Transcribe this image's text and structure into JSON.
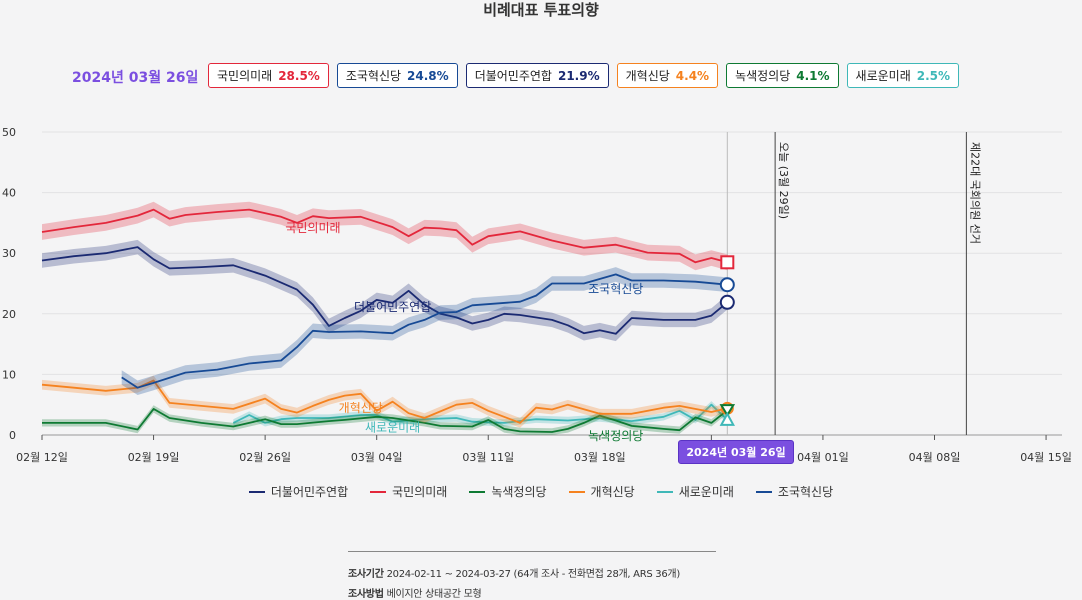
{
  "title": "비례대표 투표의향",
  "selected_date": "2024년 03월 26일",
  "badges": [
    {
      "name": "국민의미래",
      "pct": "28.5%",
      "color": "#e3273b"
    },
    {
      "name": "조국혁신당",
      "pct": "24.8%",
      "color": "#174a95"
    },
    {
      "name": "더불어민주연합",
      "pct": "21.9%",
      "color": "#1b2a72"
    },
    {
      "name": "개혁신당",
      "pct": "4.4%",
      "color": "#f5821f"
    },
    {
      "name": "녹색정의당",
      "pct": "4.1%",
      "color": "#0e7a33"
    },
    {
      "name": "새로운미래",
      "pct": "2.5%",
      "color": "#3fb8b8"
    }
  ],
  "annotations": {
    "today": "오늘 (3월 29일)",
    "election": "제22대 국회의원 선거"
  },
  "legend": [
    "더불어민주연합",
    "국민의미래",
    "녹색정의당",
    "개혁신당",
    "새로운미래",
    "조국혁신당"
  ],
  "footer": {
    "period_label": "조사기간",
    "period_value": "2024-02-11 ~ 2024-03-27 (64개 조사 - 전화면접 28개, ARS 36개)",
    "method_label": "조사방법",
    "method_value": "베이지안 상태공간 모형"
  },
  "chart_data": {
    "type": "line",
    "title": "비례대표 투표의향",
    "ylim": [
      0,
      50
    ],
    "y_ticks": [
      0,
      10,
      20,
      30,
      40,
      50
    ],
    "x_range": [
      "2024-02-12",
      "2024-04-16"
    ],
    "x_ticks": [
      "02월 12일",
      "02월 19일",
      "02월 26일",
      "03월 04일",
      "03월 11일",
      "03월 18일",
      "03월 25일",
      "04월 01일",
      "04월 08일",
      "04월 15일"
    ],
    "x_tick_dates": [
      "2024-02-12",
      "2024-02-19",
      "2024-02-26",
      "2024-03-04",
      "2024-03-11",
      "2024-03-18",
      "2024-03-25",
      "2024-04-01",
      "2024-04-08",
      "2024-04-15"
    ],
    "today_date": "2024-03-29",
    "election_date": "2024-04-10",
    "selected_date": "2024-03-26",
    "series": [
      {
        "name": "국민의미래",
        "color": "#e3273b",
        "band": 1.3,
        "label_at": [
          "2024-02-29",
          33.5
        ],
        "points": [
          [
            "2024-02-12",
            33.5
          ],
          [
            "2024-02-14",
            34.3
          ],
          [
            "2024-02-16",
            35.0
          ],
          [
            "2024-02-18",
            36.2
          ],
          [
            "2024-02-19",
            37.2
          ],
          [
            "2024-02-20",
            35.7
          ],
          [
            "2024-02-21",
            36.3
          ],
          [
            "2024-02-23",
            36.8
          ],
          [
            "2024-02-25",
            37.2
          ],
          [
            "2024-02-27",
            36.0
          ],
          [
            "2024-02-28",
            35.0
          ],
          [
            "2024-02-29",
            36.1
          ],
          [
            "2024-03-01",
            35.8
          ],
          [
            "2024-03-03",
            36.0
          ],
          [
            "2024-03-05",
            34.3
          ],
          [
            "2024-03-06",
            32.8
          ],
          [
            "2024-03-07",
            34.2
          ],
          [
            "2024-03-08",
            34.1
          ],
          [
            "2024-03-09",
            33.8
          ],
          [
            "2024-03-10",
            31.4
          ],
          [
            "2024-03-11",
            32.8
          ],
          [
            "2024-03-13",
            33.6
          ],
          [
            "2024-03-15",
            32.1
          ],
          [
            "2024-03-17",
            30.9
          ],
          [
            "2024-03-19",
            31.4
          ],
          [
            "2024-03-21",
            30.1
          ],
          [
            "2024-03-23",
            29.9
          ],
          [
            "2024-03-24",
            28.5
          ],
          [
            "2024-03-25",
            29.2
          ],
          [
            "2024-03-26",
            28.5
          ]
        ]
      },
      {
        "name": "조국혁신당",
        "color": "#174a95",
        "band": 1.2,
        "label_at": [
          "2024-03-19",
          23.4
        ],
        "points": [
          [
            "2024-02-17",
            9.5
          ],
          [
            "2024-02-18",
            7.8
          ],
          [
            "2024-02-19",
            8.6
          ],
          [
            "2024-02-21",
            10.3
          ],
          [
            "2024-02-23",
            10.8
          ],
          [
            "2024-02-25",
            11.8
          ],
          [
            "2024-02-27",
            12.3
          ],
          [
            "2024-02-28",
            14.5
          ],
          [
            "2024-02-29",
            17.2
          ],
          [
            "2024-03-01",
            17.0
          ],
          [
            "2024-03-03",
            17.1
          ],
          [
            "2024-03-05",
            16.8
          ],
          [
            "2024-03-06",
            18.2
          ],
          [
            "2024-03-07",
            19.0
          ],
          [
            "2024-03-08",
            20.2
          ],
          [
            "2024-03-09",
            20.3
          ],
          [
            "2024-03-10",
            21.4
          ],
          [
            "2024-03-13",
            22.0
          ],
          [
            "2024-03-14",
            23.0
          ],
          [
            "2024-03-15",
            25.0
          ],
          [
            "2024-03-17",
            25.0
          ],
          [
            "2024-03-19",
            26.5
          ],
          [
            "2024-03-20",
            25.5
          ],
          [
            "2024-03-22",
            25.5
          ],
          [
            "2024-03-24",
            25.3
          ],
          [
            "2024-03-26",
            24.8
          ]
        ]
      },
      {
        "name": "더불어민주연합",
        "color": "#1b2a72",
        "band": 1.2,
        "label_at": [
          "2024-03-05",
          20.5
        ],
        "points": [
          [
            "2024-02-12",
            28.8
          ],
          [
            "2024-02-14",
            29.5
          ],
          [
            "2024-02-16",
            30.0
          ],
          [
            "2024-02-18",
            31.0
          ],
          [
            "2024-02-19",
            29.0
          ],
          [
            "2024-02-20",
            27.5
          ],
          [
            "2024-02-22",
            27.7
          ],
          [
            "2024-02-24",
            28.0
          ],
          [
            "2024-02-26",
            26.3
          ],
          [
            "2024-02-28",
            24.0
          ],
          [
            "2024-02-29",
            21.5
          ],
          [
            "2024-03-01",
            18.0
          ],
          [
            "2024-03-02",
            19.3
          ],
          [
            "2024-03-03",
            20.5
          ],
          [
            "2024-03-04",
            22.3
          ],
          [
            "2024-03-05",
            21.8
          ],
          [
            "2024-03-06",
            23.8
          ],
          [
            "2024-03-07",
            21.5
          ],
          [
            "2024-03-08",
            20.0
          ],
          [
            "2024-03-09",
            19.4
          ],
          [
            "2024-03-10",
            18.4
          ],
          [
            "2024-03-11",
            19.0
          ],
          [
            "2024-03-12",
            20.0
          ],
          [
            "2024-03-13",
            19.8
          ],
          [
            "2024-03-15",
            19.0
          ],
          [
            "2024-03-16",
            18.1
          ],
          [
            "2024-03-17",
            16.8
          ],
          [
            "2024-03-18",
            17.3
          ],
          [
            "2024-03-19",
            16.7
          ],
          [
            "2024-03-20",
            19.3
          ],
          [
            "2024-03-22",
            19.0
          ],
          [
            "2024-03-24",
            19.0
          ],
          [
            "2024-03-25",
            19.7
          ],
          [
            "2024-03-26",
            21.9
          ]
        ]
      },
      {
        "name": "개혁신당",
        "color": "#f5821f",
        "band": 0.8,
        "label_at": [
          "2024-03-03",
          3.8
        ],
        "points": [
          [
            "2024-02-12",
            8.3
          ],
          [
            "2024-02-14",
            7.8
          ],
          [
            "2024-02-16",
            7.3
          ],
          [
            "2024-02-18",
            7.8
          ],
          [
            "2024-02-19",
            9.0
          ],
          [
            "2024-02-20",
            5.3
          ],
          [
            "2024-02-22",
            4.8
          ],
          [
            "2024-02-24",
            4.3
          ],
          [
            "2024-02-26",
            6.0
          ],
          [
            "2024-02-27",
            4.3
          ],
          [
            "2024-02-28",
            3.7
          ],
          [
            "2024-02-29",
            4.8
          ],
          [
            "2024-03-01",
            5.8
          ],
          [
            "2024-03-02",
            6.5
          ],
          [
            "2024-03-03",
            6.8
          ],
          [
            "2024-03-04",
            4.0
          ],
          [
            "2024-03-05",
            5.5
          ],
          [
            "2024-03-06",
            3.6
          ],
          [
            "2024-03-07",
            2.8
          ],
          [
            "2024-03-09",
            5.0
          ],
          [
            "2024-03-10",
            5.3
          ],
          [
            "2024-03-11",
            4.0
          ],
          [
            "2024-03-13",
            2.0
          ],
          [
            "2024-03-14",
            4.5
          ],
          [
            "2024-03-15",
            4.2
          ],
          [
            "2024-03-16",
            5.0
          ],
          [
            "2024-03-18",
            3.5
          ],
          [
            "2024-03-20",
            3.5
          ],
          [
            "2024-03-22",
            4.5
          ],
          [
            "2024-03-23",
            4.8
          ],
          [
            "2024-03-25",
            3.8
          ],
          [
            "2024-03-26",
            4.4
          ]
        ]
      },
      {
        "name": "녹색정의당",
        "color": "#0e7a33",
        "band": 0.6,
        "label_at": [
          "2024-03-19",
          -0.8
        ],
        "points": [
          [
            "2024-02-12",
            2.0
          ],
          [
            "2024-02-14",
            2.0
          ],
          [
            "2024-02-16",
            2.0
          ],
          [
            "2024-02-18",
            0.9
          ],
          [
            "2024-02-19",
            4.3
          ],
          [
            "2024-02-20",
            2.8
          ],
          [
            "2024-02-22",
            2.0
          ],
          [
            "2024-02-24",
            1.4
          ],
          [
            "2024-02-26",
            2.6
          ],
          [
            "2024-02-27",
            1.8
          ],
          [
            "2024-02-28",
            1.8
          ],
          [
            "2024-03-01",
            2.3
          ],
          [
            "2024-03-02",
            2.5
          ],
          [
            "2024-03-04",
            3.0
          ],
          [
            "2024-03-05",
            2.8
          ],
          [
            "2024-03-07",
            2.0
          ],
          [
            "2024-03-08",
            1.5
          ],
          [
            "2024-03-10",
            1.4
          ],
          [
            "2024-03-11",
            2.5
          ],
          [
            "2024-03-12",
            1.0
          ],
          [
            "2024-03-13",
            0.6
          ],
          [
            "2024-03-15",
            0.5
          ],
          [
            "2024-03-16",
            1.0
          ],
          [
            "2024-03-17",
            2.0
          ],
          [
            "2024-03-18",
            3.2
          ],
          [
            "2024-03-19",
            2.4
          ],
          [
            "2024-03-20",
            1.5
          ],
          [
            "2024-03-22",
            1.0
          ],
          [
            "2024-03-23",
            0.8
          ],
          [
            "2024-03-24",
            2.9
          ],
          [
            "2024-03-25",
            2.0
          ],
          [
            "2024-03-26",
            4.1
          ]
        ]
      },
      {
        "name": "새로운미래",
        "color": "#3fb8b8",
        "band": 0.6,
        "label_at": [
          "2024-03-05",
          0.6
        ],
        "points": [
          [
            "2024-02-24",
            2.0
          ],
          [
            "2024-02-25",
            3.3
          ],
          [
            "2024-02-26",
            2.0
          ],
          [
            "2024-02-27",
            2.6
          ],
          [
            "2024-02-28",
            2.8
          ],
          [
            "2024-03-01",
            2.8
          ],
          [
            "2024-03-03",
            3.3
          ],
          [
            "2024-03-04",
            3.3
          ],
          [
            "2024-03-05",
            2.2
          ],
          [
            "2024-03-07",
            2.6
          ],
          [
            "2024-03-09",
            2.8
          ],
          [
            "2024-03-10",
            2.2
          ],
          [
            "2024-03-12",
            2.0
          ],
          [
            "2024-03-14",
            2.6
          ],
          [
            "2024-03-16",
            2.4
          ],
          [
            "2024-03-18",
            2.8
          ],
          [
            "2024-03-20",
            2.3
          ],
          [
            "2024-03-22",
            3.0
          ],
          [
            "2024-03-23",
            4.0
          ],
          [
            "2024-03-24",
            2.5
          ],
          [
            "2024-03-25",
            5.0
          ],
          [
            "2024-03-26",
            2.5
          ]
        ]
      }
    ]
  }
}
